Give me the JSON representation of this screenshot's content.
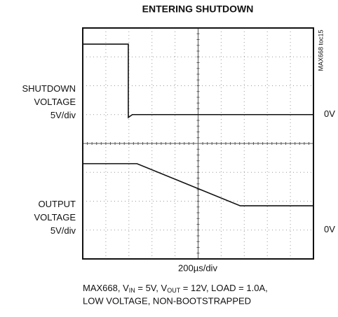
{
  "chart_data": {
    "type": "scope",
    "title": "ENTERING SHUTDOWN",
    "watermark": "MAX668 toc15",
    "x_label": "200µs/div",
    "xlim": [
      0,
      2000
    ],
    "channels": [
      {
        "label_lines": [
          "SHUTDOWN",
          "VOLTAGE",
          "5V/div"
        ],
        "zero_label": "0V",
        "ylim": [
          -25,
          15
        ],
        "x": [
          0,
          395,
          395,
          430,
          2000
        ],
        "values": [
          12.2,
          12.2,
          -0.5,
          0,
          0
        ]
      },
      {
        "label_lines": [
          "OUTPUT",
          "VOLTAGE",
          "5V/div"
        ],
        "zero_label": "0V",
        "ylim": [
          -5,
          35
        ],
        "x": [
          0,
          470,
          1365,
          2000
        ],
        "values": [
          11.5,
          11.5,
          4.2,
          4.2
        ]
      }
    ],
    "caption_line1": [
      "MAX668, V",
      "IN",
      " = 5V, V",
      "OUT",
      " = 12V, LOAD = 1.0A,"
    ],
    "caption_line2": "LOW VOLTAGE, NON-BOOTSTRAPPED"
  }
}
